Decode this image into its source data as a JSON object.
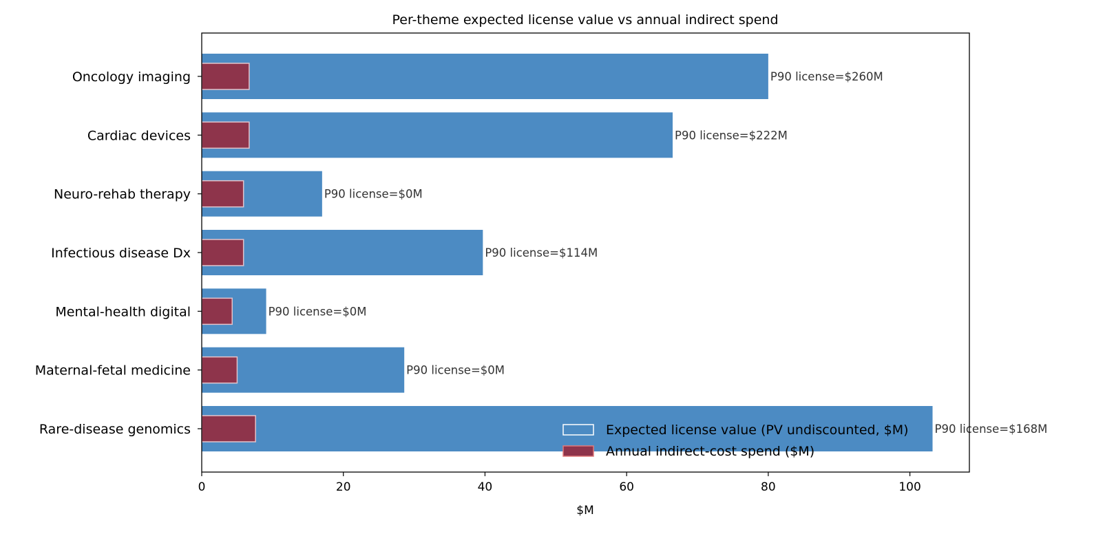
{
  "chart_data": {
    "type": "bar",
    "orientation": "horizontal",
    "title": "Per-theme expected license value vs annual indirect spend",
    "xlabel": "$M",
    "ylabel": "",
    "xlim": [
      0,
      108.4
    ],
    "xticks": [
      0,
      20,
      40,
      60,
      80,
      100
    ],
    "grid": false,
    "legend_position": "bottom-right",
    "categories": [
      "Oncology imaging",
      "Cardiac devices",
      "Neuro-rehab therapy",
      "Infectious disease Dx",
      "Mental-health digital",
      "Maternal-fetal medicine",
      "Rare-disease genomics"
    ],
    "series": [
      {
        "name": "Expected license value (PV undiscounted, $M)",
        "color": "#4c8bc3",
        "values": [
          80.0,
          66.5,
          17.0,
          39.7,
          9.1,
          28.6,
          103.2
        ]
      },
      {
        "name": "Annual indirect-cost spend ($M)",
        "color": "#8e344b",
        "values": [
          6.7,
          6.7,
          5.9,
          5.9,
          4.3,
          5.0,
          7.6
        ]
      }
    ],
    "annotations": [
      "P90 license=$260M",
      "P90 license=$222M",
      "P90 license=$0M",
      "P90 license=$114M",
      "P90 license=$0M",
      "P90 license=$0M",
      "P90 license=$168M"
    ]
  }
}
